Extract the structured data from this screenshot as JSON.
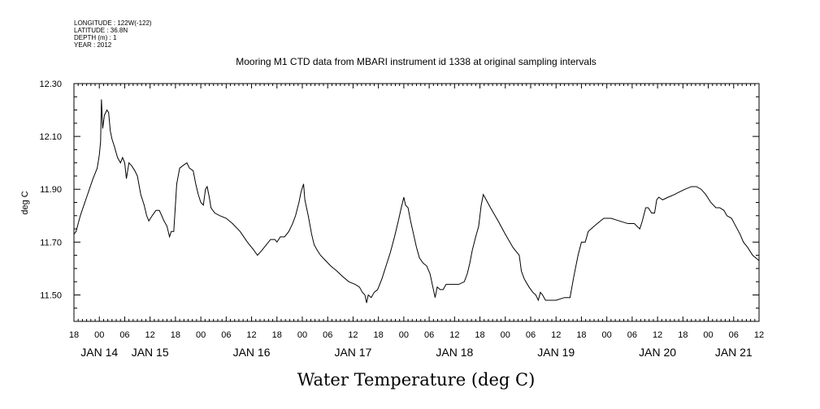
{
  "header": {
    "lines": [
      "LONGITUDE : 122W(-122)",
      "LATITUDE : 36.8N",
      "DEPTH (m) : 1",
      "YEAR : 2012"
    ]
  },
  "chart_data": {
    "type": "line",
    "title": "Mooring M1 CTD data from MBARI instrument id 1338 at original sampling intervals",
    "xlabel": "Water Temperature (deg C)",
    "ylabel": "deg C",
    "xlim": [
      -6,
      156
    ],
    "x_unit": "hours from 2012-01-14 00:00",
    "ylim": [
      11.4,
      12.3
    ],
    "y_ticks": [
      11.5,
      11.7,
      11.9,
      12.1,
      12.3
    ],
    "y_tick_labels": [
      "11.50",
      "11.70",
      "11.90",
      "12.10",
      "12.30"
    ],
    "x_ticks": [
      -6,
      0,
      6,
      12,
      18,
      24,
      30,
      36,
      42,
      48,
      54,
      60,
      66,
      72,
      78,
      84,
      90,
      96,
      102,
      108,
      114,
      120,
      126,
      132,
      138,
      144,
      150,
      156
    ],
    "x_tick_labels": [
      "18",
      "00",
      "06",
      "12",
      "18",
      "00",
      "06",
      "12",
      "18",
      "00",
      "06",
      "12",
      "18",
      "00",
      "06",
      "12",
      "18",
      "00",
      "06",
      "12",
      "18",
      "00",
      "06",
      "12",
      "18",
      "00",
      "06",
      "12"
    ],
    "day_labels": [
      {
        "x": 0,
        "label": "JAN 14"
      },
      {
        "x": 12,
        "label": "JAN 15"
      },
      {
        "x": 36,
        "label": "JAN 16"
      },
      {
        "x": 60,
        "label": "JAN 17"
      },
      {
        "x": 84,
        "label": "JAN 18"
      },
      {
        "x": 108,
        "label": "JAN 19"
      },
      {
        "x": 132,
        "label": "JAN 20"
      },
      {
        "x": 150,
        "label": "JAN 21"
      }
    ],
    "grid": false,
    "series": [
      {
        "values": [
          [
            -6,
            11.73
          ],
          [
            -5.5,
            11.74
          ],
          [
            -4.5,
            11.8
          ],
          [
            -3,
            11.87
          ],
          [
            -1.5,
            11.94
          ],
          [
            -0.5,
            11.98
          ],
          [
            0,
            12.03
          ],
          [
            0.3,
            12.08
          ],
          [
            0.5,
            12.24
          ],
          [
            0.8,
            12.13
          ],
          [
            1.2,
            12.18
          ],
          [
            1.8,
            12.2
          ],
          [
            2.2,
            12.19
          ],
          [
            2.6,
            12.12
          ],
          [
            3,
            12.09
          ],
          [
            3.6,
            12.06
          ],
          [
            4.3,
            12.02
          ],
          [
            5,
            12.0
          ],
          [
            5.5,
            12.02
          ],
          [
            6,
            12.0
          ],
          [
            6.4,
            11.94
          ],
          [
            7,
            12.0
          ],
          [
            7.6,
            11.99
          ],
          [
            8.4,
            11.97
          ],
          [
            9,
            11.95
          ],
          [
            9.8,
            11.88
          ],
          [
            10.6,
            11.84
          ],
          [
            11.2,
            11.8
          ],
          [
            11.7,
            11.78
          ],
          [
            12.5,
            11.8
          ],
          [
            13.4,
            11.82
          ],
          [
            14.2,
            11.82
          ],
          [
            15.3,
            11.78
          ],
          [
            16,
            11.76
          ],
          [
            16.6,
            11.72
          ],
          [
            17,
            11.74
          ],
          [
            17.6,
            11.74
          ],
          [
            18.3,
            11.92
          ],
          [
            19,
            11.98
          ],
          [
            19.8,
            11.99
          ],
          [
            20.7,
            12.0
          ],
          [
            21.3,
            11.98
          ],
          [
            22.2,
            11.97
          ],
          [
            22.8,
            11.92
          ],
          [
            23.4,
            11.88
          ],
          [
            24,
            11.85
          ],
          [
            24.6,
            11.84
          ],
          [
            25.1,
            11.9
          ],
          [
            25.5,
            11.91
          ],
          [
            26,
            11.87
          ],
          [
            26.4,
            11.83
          ],
          [
            27.3,
            11.81
          ],
          [
            28.5,
            11.8
          ],
          [
            30,
            11.79
          ],
          [
            31.5,
            11.77
          ],
          [
            33.3,
            11.74
          ],
          [
            35,
            11.7
          ],
          [
            36.5,
            11.67
          ],
          [
            37.4,
            11.65
          ],
          [
            38.5,
            11.67
          ],
          [
            39.5,
            11.69
          ],
          [
            40.5,
            11.71
          ],
          [
            41.5,
            11.71
          ],
          [
            42,
            11.7
          ],
          [
            42.8,
            11.72
          ],
          [
            43.8,
            11.72
          ],
          [
            44.8,
            11.74
          ],
          [
            45.7,
            11.77
          ],
          [
            46.4,
            11.8
          ],
          [
            47.2,
            11.85
          ],
          [
            47.7,
            11.89
          ],
          [
            48.3,
            11.92
          ],
          [
            48.6,
            11.86
          ],
          [
            49.4,
            11.8
          ],
          [
            50.2,
            11.73
          ],
          [
            50.8,
            11.69
          ],
          [
            51.5,
            11.67
          ],
          [
            52.3,
            11.65
          ],
          [
            53.5,
            11.63
          ],
          [
            54.7,
            11.61
          ],
          [
            56.2,
            11.59
          ],
          [
            57.5,
            11.57
          ],
          [
            59,
            11.55
          ],
          [
            60.5,
            11.54
          ],
          [
            61.5,
            11.53
          ],
          [
            62.2,
            11.51
          ],
          [
            62.8,
            11.5
          ],
          [
            63.2,
            11.47
          ],
          [
            63.6,
            11.5
          ],
          [
            64.3,
            11.49
          ],
          [
            65,
            11.51
          ],
          [
            65.8,
            11.52
          ],
          [
            66.8,
            11.56
          ],
          [
            67.8,
            11.61
          ],
          [
            68.8,
            11.66
          ],
          [
            69.8,
            11.72
          ],
          [
            70.7,
            11.78
          ],
          [
            71.4,
            11.83
          ],
          [
            72,
            11.87
          ],
          [
            72.4,
            11.84
          ],
          [
            73,
            11.83
          ],
          [
            73.6,
            11.78
          ],
          [
            74.3,
            11.73
          ],
          [
            75,
            11.68
          ],
          [
            75.7,
            11.64
          ],
          [
            76.6,
            11.62
          ],
          [
            77.4,
            11.61
          ],
          [
            78.2,
            11.58
          ],
          [
            78.6,
            11.55
          ],
          [
            79,
            11.52
          ],
          [
            79.4,
            11.49
          ],
          [
            79.9,
            11.53
          ],
          [
            80.6,
            11.52
          ],
          [
            81.3,
            11.52
          ],
          [
            82,
            11.54
          ],
          [
            83.5,
            11.54
          ],
          [
            85,
            11.54
          ],
          [
            86.3,
            11.55
          ],
          [
            87,
            11.58
          ],
          [
            87.6,
            11.62
          ],
          [
            88.2,
            11.67
          ],
          [
            89,
            11.72
          ],
          [
            89.7,
            11.76
          ],
          [
            90.3,
            11.84
          ],
          [
            90.8,
            11.88
          ],
          [
            92.5,
            11.83
          ],
          [
            94.3,
            11.78
          ],
          [
            96,
            11.73
          ],
          [
            97.8,
            11.68
          ],
          [
            99.3,
            11.65
          ],
          [
            99.8,
            11.59
          ],
          [
            100.5,
            11.56
          ],
          [
            101.6,
            11.53
          ],
          [
            102.5,
            11.51
          ],
          [
            103.2,
            11.5
          ],
          [
            103.8,
            11.48
          ],
          [
            104.3,
            11.51
          ],
          [
            104.8,
            11.5
          ],
          [
            105.5,
            11.48
          ],
          [
            108,
            11.48
          ],
          [
            110,
            11.49
          ],
          [
            111.3,
            11.49
          ],
          [
            112.2,
            11.57
          ],
          [
            113.2,
            11.65
          ],
          [
            114,
            11.7
          ],
          [
            114.9,
            11.7
          ],
          [
            115.6,
            11.74
          ],
          [
            117,
            11.76
          ],
          [
            118.5,
            11.78
          ],
          [
            119.3,
            11.79
          ],
          [
            121,
            11.79
          ],
          [
            123,
            11.78
          ],
          [
            125,
            11.77
          ],
          [
            126.5,
            11.77
          ],
          [
            127.8,
            11.75
          ],
          [
            128.4,
            11.78
          ],
          [
            129.2,
            11.83
          ],
          [
            129.8,
            11.83
          ],
          [
            130.6,
            11.81
          ],
          [
            131.3,
            11.81
          ],
          [
            131.8,
            11.86
          ],
          [
            132.3,
            11.87
          ],
          [
            133.2,
            11.86
          ],
          [
            134.5,
            11.87
          ],
          [
            136,
            11.88
          ],
          [
            137.2,
            11.89
          ],
          [
            138.5,
            11.9
          ],
          [
            140,
            11.91
          ],
          [
            141.2,
            11.91
          ],
          [
            142.3,
            11.9
          ],
          [
            143.4,
            11.88
          ],
          [
            144.6,
            11.85
          ],
          [
            145.8,
            11.83
          ],
          [
            146.7,
            11.83
          ],
          [
            147.7,
            11.82
          ],
          [
            148.4,
            11.8
          ],
          [
            149.5,
            11.79
          ],
          [
            150.5,
            11.76
          ],
          [
            151.5,
            11.73
          ],
          [
            152.3,
            11.7
          ],
          [
            153.3,
            11.68
          ],
          [
            154.5,
            11.65
          ],
          [
            156,
            11.63
          ]
        ]
      }
    ]
  }
}
